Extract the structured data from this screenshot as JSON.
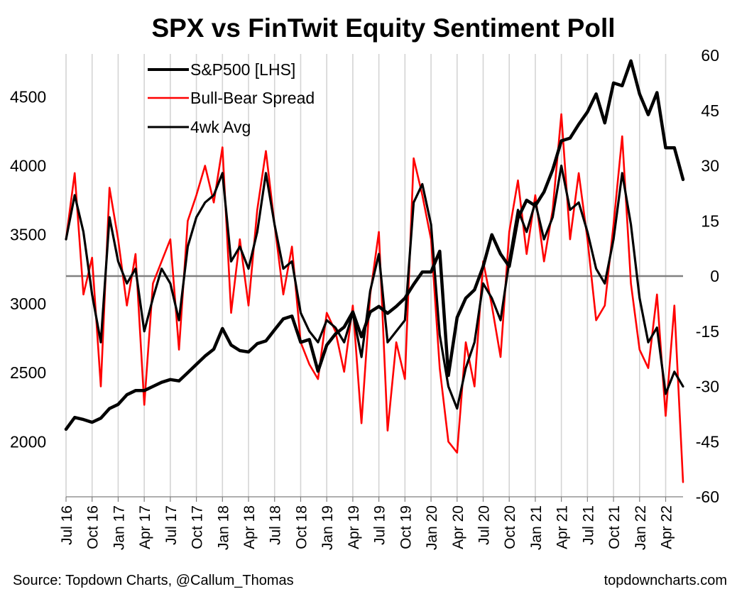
{
  "chart_data": {
    "type": "line",
    "title": "SPX vs FinTwit Equity Sentiment Poll",
    "source": "Source: Topdown Charts, @Callum_Thomas",
    "site": "topdowncharts.com",
    "legend_position": "top-left",
    "legend": [
      "S&P500 [LHS]",
      "Bull-Bear Spread",
      "4wk Avg"
    ],
    "x_ticks": [
      "Jul 16",
      "Oct 16",
      "Jan 17",
      "Apr 17",
      "Jul 17",
      "Oct 17",
      "Jan 18",
      "Apr 18",
      "Jul 18",
      "Oct 18",
      "Jan 19",
      "Apr 19",
      "Jul 19",
      "Oct 19",
      "Jan 20",
      "Apr 20",
      "Jul 20",
      "Oct 20",
      "Jan 21",
      "Apr 21",
      "Jul 21",
      "Oct 21",
      "Jan 22",
      "Apr 22"
    ],
    "x_range": [
      "2016-07",
      "2022-06"
    ],
    "grid": "vertical lines at each tick",
    "y_left": {
      "label": "S&P500",
      "range": [
        1600,
        4800
      ],
      "ticks": [
        2000,
        2500,
        3000,
        3500,
        4000,
        4500
      ]
    },
    "y_right": {
      "label": "Bull-Bear Spread",
      "range": [
        -60,
        60
      ],
      "ticks": [
        60,
        45,
        30,
        15,
        0,
        -15,
        -30,
        -45,
        -60
      ],
      "zero_line": 0
    },
    "series": [
      {
        "name": "S&P500 [LHS]",
        "axis": "left",
        "color": "#000000",
        "points": [
          [
            "2016-07",
            2090
          ],
          [
            "2016-08",
            2175
          ],
          [
            "2016-09",
            2160
          ],
          [
            "2016-10",
            2140
          ],
          [
            "2016-11",
            2170
          ],
          [
            "2016-12",
            2240
          ],
          [
            "2017-01",
            2270
          ],
          [
            "2017-02",
            2340
          ],
          [
            "2017-03",
            2370
          ],
          [
            "2017-04",
            2370
          ],
          [
            "2017-05",
            2400
          ],
          [
            "2017-06",
            2430
          ],
          [
            "2017-07",
            2450
          ],
          [
            "2017-08",
            2440
          ],
          [
            "2017-09",
            2500
          ],
          [
            "2017-10",
            2560
          ],
          [
            "2017-11",
            2620
          ],
          [
            "2017-12",
            2670
          ],
          [
            "2018-01",
            2820
          ],
          [
            "2018-02",
            2700
          ],
          [
            "2018-03",
            2660
          ],
          [
            "2018-04",
            2650
          ],
          [
            "2018-05",
            2710
          ],
          [
            "2018-06",
            2730
          ],
          [
            "2018-07",
            2810
          ],
          [
            "2018-08",
            2890
          ],
          [
            "2018-09",
            2910
          ],
          [
            "2018-10",
            2720
          ],
          [
            "2018-11",
            2740
          ],
          [
            "2018-12",
            2510
          ],
          [
            "2019-01",
            2700
          ],
          [
            "2019-02",
            2780
          ],
          [
            "2019-03",
            2830
          ],
          [
            "2019-04",
            2940
          ],
          [
            "2019-05",
            2760
          ],
          [
            "2019-06",
            2940
          ],
          [
            "2019-07",
            2980
          ],
          [
            "2019-08",
            2930
          ],
          [
            "2019-09",
            2980
          ],
          [
            "2019-10",
            3040
          ],
          [
            "2019-11",
            3140
          ],
          [
            "2019-12",
            3230
          ],
          [
            "2020-01",
            3230
          ],
          [
            "2020-02",
            3380
          ],
          [
            "2020-03",
            2480
          ],
          [
            "2020-04",
            2900
          ],
          [
            "2020-05",
            3040
          ],
          [
            "2020-06",
            3100
          ],
          [
            "2020-07",
            3270
          ],
          [
            "2020-08",
            3500
          ],
          [
            "2020-09",
            3360
          ],
          [
            "2020-10",
            3270
          ],
          [
            "2020-11",
            3620
          ],
          [
            "2020-12",
            3750
          ],
          [
            "2021-01",
            3710
          ],
          [
            "2021-02",
            3810
          ],
          [
            "2021-03",
            3970
          ],
          [
            "2021-04",
            4180
          ],
          [
            "2021-05",
            4200
          ],
          [
            "2021-06",
            4300
          ],
          [
            "2021-07",
            4390
          ],
          [
            "2021-08",
            4520
          ],
          [
            "2021-09",
            4310
          ],
          [
            "2021-10",
            4600
          ],
          [
            "2021-11",
            4580
          ],
          [
            "2021-12",
            4760
          ],
          [
            "2022-01",
            4520
          ],
          [
            "2022-02",
            4370
          ],
          [
            "2022-03",
            4530
          ],
          [
            "2022-04",
            4130
          ],
          [
            "2022-05",
            4130
          ],
          [
            "2022-06",
            3900
          ]
        ]
      },
      {
        "name": "Bull-Bear Spread",
        "axis": "right",
        "color": "#ff0000",
        "points": [
          [
            "2016-07",
            10
          ],
          [
            "2016-08",
            28
          ],
          [
            "2016-09",
            -5
          ],
          [
            "2016-10",
            5
          ],
          [
            "2016-11",
            -30
          ],
          [
            "2016-12",
            24
          ],
          [
            "2017-01",
            10
          ],
          [
            "2017-02",
            -8
          ],
          [
            "2017-03",
            6
          ],
          [
            "2017-04",
            -35
          ],
          [
            "2017-05",
            -2
          ],
          [
            "2017-06",
            4
          ],
          [
            "2017-07",
            10
          ],
          [
            "2017-08",
            -20
          ],
          [
            "2017-09",
            15
          ],
          [
            "2017-10",
            22
          ],
          [
            "2017-11",
            30
          ],
          [
            "2017-12",
            20
          ],
          [
            "2018-01",
            35
          ],
          [
            "2018-02",
            -10
          ],
          [
            "2018-03",
            10
          ],
          [
            "2018-04",
            -8
          ],
          [
            "2018-05",
            18
          ],
          [
            "2018-06",
            34
          ],
          [
            "2018-07",
            14
          ],
          [
            "2018-08",
            -5
          ],
          [
            "2018-09",
            8
          ],
          [
            "2018-10",
            -18
          ],
          [
            "2018-11",
            -24
          ],
          [
            "2018-12",
            -28
          ],
          [
            "2019-01",
            -10
          ],
          [
            "2019-02",
            -15
          ],
          [
            "2019-03",
            -26
          ],
          [
            "2019-04",
            -8
          ],
          [
            "2019-05",
            -40
          ],
          [
            "2019-06",
            -5
          ],
          [
            "2019-07",
            12
          ],
          [
            "2019-08",
            -42
          ],
          [
            "2019-09",
            -18
          ],
          [
            "2019-10",
            -28
          ],
          [
            "2019-11",
            32
          ],
          [
            "2019-12",
            22
          ],
          [
            "2020-01",
            10
          ],
          [
            "2020-02",
            -25
          ],
          [
            "2020-03",
            -45
          ],
          [
            "2020-04",
            -48
          ],
          [
            "2020-05",
            -18
          ],
          [
            "2020-06",
            -30
          ],
          [
            "2020-07",
            4
          ],
          [
            "2020-08",
            -8
          ],
          [
            "2020-09",
            -22
          ],
          [
            "2020-10",
            12
          ],
          [
            "2020-11",
            26
          ],
          [
            "2020-12",
            6
          ],
          [
            "2021-01",
            22
          ],
          [
            "2021-02",
            4
          ],
          [
            "2021-03",
            18
          ],
          [
            "2021-04",
            44
          ],
          [
            "2021-05",
            10
          ],
          [
            "2021-06",
            28
          ],
          [
            "2021-07",
            10
          ],
          [
            "2021-08",
            -12
          ],
          [
            "2021-09",
            -8
          ],
          [
            "2021-10",
            14
          ],
          [
            "2021-11",
            38
          ],
          [
            "2021-12",
            -2
          ],
          [
            "2022-01",
            -20
          ],
          [
            "2022-02",
            -25
          ],
          [
            "2022-03",
            -5
          ],
          [
            "2022-04",
            -38
          ],
          [
            "2022-05",
            -8
          ],
          [
            "2022-06",
            -56
          ]
        ]
      },
      {
        "name": "4wk Avg",
        "axis": "right",
        "color": "#000000",
        "points": [
          [
            "2016-07",
            10
          ],
          [
            "2016-08",
            22
          ],
          [
            "2016-09",
            12
          ],
          [
            "2016-10",
            -5
          ],
          [
            "2016-11",
            -18
          ],
          [
            "2016-12",
            16
          ],
          [
            "2017-01",
            4
          ],
          [
            "2017-02",
            -2
          ],
          [
            "2017-03",
            2
          ],
          [
            "2017-04",
            -15
          ],
          [
            "2017-05",
            -6
          ],
          [
            "2017-06",
            2
          ],
          [
            "2017-07",
            -2
          ],
          [
            "2017-08",
            -12
          ],
          [
            "2017-09",
            8
          ],
          [
            "2017-10",
            16
          ],
          [
            "2017-11",
            20
          ],
          [
            "2017-12",
            22
          ],
          [
            "2018-01",
            28
          ],
          [
            "2018-02",
            4
          ],
          [
            "2018-03",
            8
          ],
          [
            "2018-04",
            2
          ],
          [
            "2018-05",
            12
          ],
          [
            "2018-06",
            28
          ],
          [
            "2018-07",
            14
          ],
          [
            "2018-08",
            2
          ],
          [
            "2018-09",
            4
          ],
          [
            "2018-10",
            -10
          ],
          [
            "2018-11",
            -15
          ],
          [
            "2018-12",
            -18
          ],
          [
            "2019-01",
            -12
          ],
          [
            "2019-02",
            -14
          ],
          [
            "2019-03",
            -18
          ],
          [
            "2019-04",
            -10
          ],
          [
            "2019-05",
            -22
          ],
          [
            "2019-06",
            -4
          ],
          [
            "2019-07",
            6
          ],
          [
            "2019-08",
            -18
          ],
          [
            "2019-09",
            -15
          ],
          [
            "2019-10",
            -12
          ],
          [
            "2019-11",
            20
          ],
          [
            "2019-12",
            25
          ],
          [
            "2020-01",
            14
          ],
          [
            "2020-02",
            -16
          ],
          [
            "2020-03",
            -30
          ],
          [
            "2020-04",
            -36
          ],
          [
            "2020-05",
            -25
          ],
          [
            "2020-06",
            -18
          ],
          [
            "2020-07",
            -2
          ],
          [
            "2020-08",
            -6
          ],
          [
            "2020-09",
            -12
          ],
          [
            "2020-10",
            4
          ],
          [
            "2020-11",
            18
          ],
          [
            "2020-12",
            12
          ],
          [
            "2021-01",
            20
          ],
          [
            "2021-02",
            10
          ],
          [
            "2021-03",
            16
          ],
          [
            "2021-04",
            30
          ],
          [
            "2021-05",
            18
          ],
          [
            "2021-06",
            20
          ],
          [
            "2021-07",
            12
          ],
          [
            "2021-08",
            2
          ],
          [
            "2021-09",
            -2
          ],
          [
            "2021-10",
            10
          ],
          [
            "2021-11",
            28
          ],
          [
            "2021-12",
            14
          ],
          [
            "2022-01",
            -6
          ],
          [
            "2022-02",
            -18
          ],
          [
            "2022-03",
            -14
          ],
          [
            "2022-04",
            -32
          ],
          [
            "2022-05",
            -26
          ],
          [
            "2022-06",
            -30
          ]
        ]
      }
    ]
  }
}
